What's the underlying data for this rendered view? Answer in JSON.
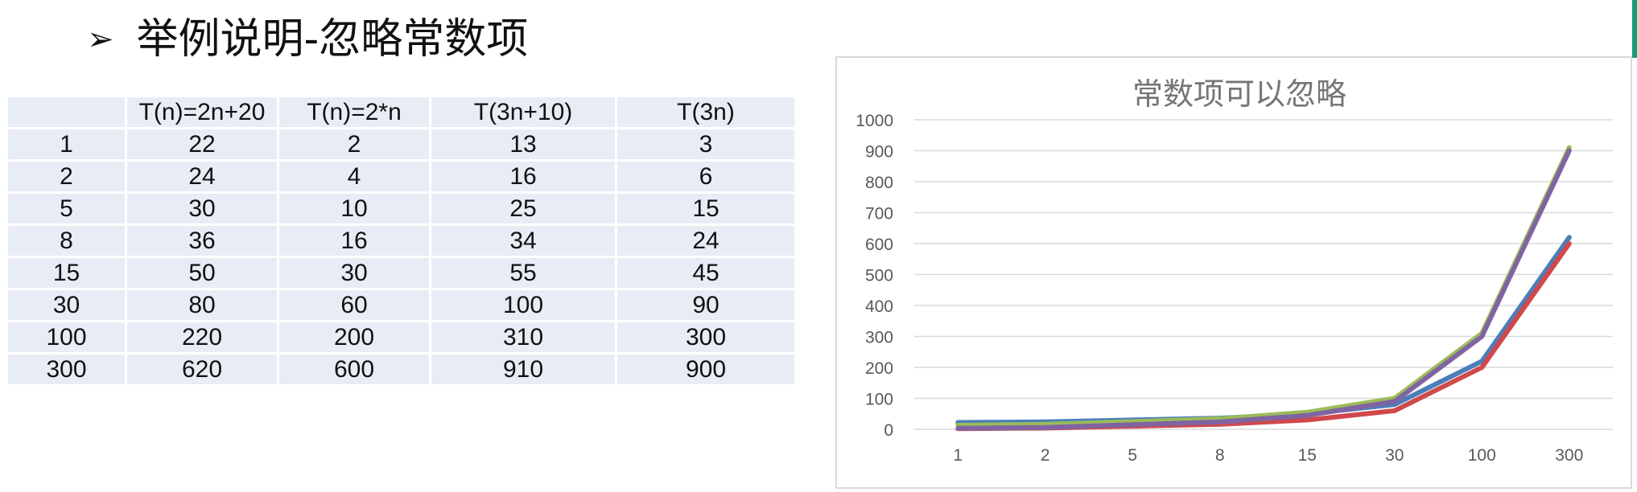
{
  "heading": {
    "bullet": "➢",
    "title": "举例说明-忽略常数项"
  },
  "table": {
    "headers": [
      "",
      "T(n)=2n+20",
      "T(n)=2*n",
      "T(3n+10)",
      "T(3n)"
    ],
    "rows": [
      [
        "1",
        "22",
        "2",
        "13",
        "3"
      ],
      [
        "2",
        "24",
        "4",
        "16",
        "6"
      ],
      [
        "5",
        "30",
        "10",
        "25",
        "15"
      ],
      [
        "8",
        "36",
        "16",
        "34",
        "24"
      ],
      [
        "15",
        "50",
        "30",
        "55",
        "45"
      ],
      [
        "30",
        "80",
        "60",
        "100",
        "90"
      ],
      [
        "100",
        "220",
        "200",
        "310",
        "300"
      ],
      [
        "300",
        "620",
        "600",
        "910",
        "900"
      ]
    ]
  },
  "chart_data": {
    "type": "line",
    "title": "常数项可以忽略",
    "categories": [
      "1",
      "2",
      "5",
      "8",
      "15",
      "30",
      "100",
      "300"
    ],
    "yticks": [
      "0",
      "100",
      "200",
      "300",
      "400",
      "500",
      "600",
      "700",
      "800",
      "900",
      "1000"
    ],
    "ylim": [
      0,
      1000
    ],
    "grid": true,
    "legend": "none",
    "series": [
      {
        "values": [
          22,
          24,
          30,
          36,
          50,
          80,
          220,
          620
        ],
        "color": "#4a7ebb"
      },
      {
        "values": [
          2,
          4,
          10,
          16,
          30,
          60,
          200,
          600
        ],
        "color": "#d0484b"
      },
      {
        "values": [
          13,
          16,
          25,
          34,
          55,
          100,
          310,
          910
        ],
        "color": "#9bbb59"
      },
      {
        "values": [
          3,
          6,
          15,
          24,
          45,
          90,
          300,
          900
        ],
        "color": "#8064a2"
      }
    ]
  },
  "colors": {
    "table_cell": "#e8ecf5",
    "grid": "#d9d9d9",
    "axis_text": "#595959",
    "title_text": "#757575",
    "accent": "#1a9a7a"
  }
}
